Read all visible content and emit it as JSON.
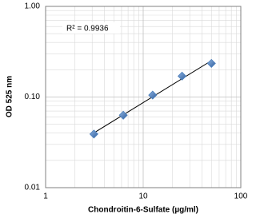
{
  "chart_data": {
    "type": "scatter",
    "x_label": "Chondroitin-6-Sulfate (µg/ml)",
    "y_label": "OD 525 nm",
    "annotation": "R² = 0.9936",
    "x": [
      3.125,
      6.25,
      12.5,
      25,
      50
    ],
    "values": [
      0.039,
      0.063,
      0.105,
      0.17,
      0.235
    ],
    "color": "#4a7ebb",
    "trendline": true,
    "log_x": true,
    "log_y": true,
    "grid": true,
    "xlim": [
      1,
      100
    ],
    "xticks": [
      1,
      10,
      100
    ],
    "ylim": [
      0.01,
      1
    ],
    "yticks": [
      {
        "value": 0.01,
        "label": "0.01"
      },
      {
        "value": 0.1,
        "label": "0.10"
      },
      {
        "value": 1,
        "label": "1.00"
      }
    ]
  }
}
